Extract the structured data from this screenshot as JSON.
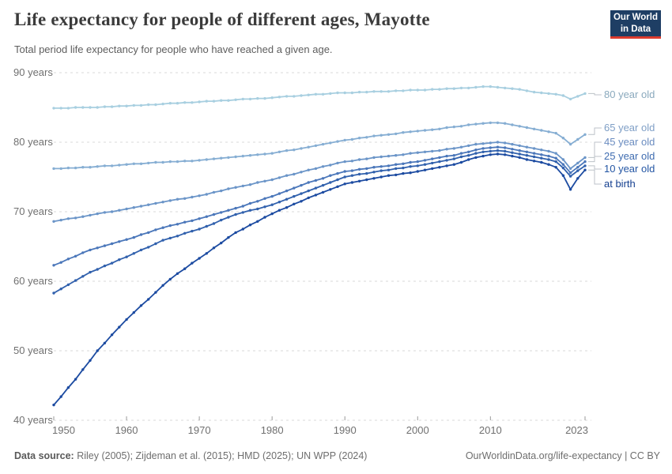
{
  "header": {
    "title": "Life expectancy for people of different ages, Mayotte",
    "subtitle": "Total period life expectancy for people who have reached a given age.",
    "logo_line1": "Our World",
    "logo_line2": "in Data",
    "logo_bg_color": "#1e3e64",
    "logo_accent_color": "#dc3b2e"
  },
  "footer": {
    "data_source_label": "Data source:",
    "data_source_value": " Riley (2005); Zijdeman et al. (2015); HMD (2025); UN WPP (2024)",
    "link_text": "OurWorldinData.org/life-expectancy | CC BY"
  },
  "chart_data": {
    "type": "line",
    "title": "Life expectancy for people of different ages, Mayotte",
    "xlabel": "",
    "ylabel": "",
    "x_range": [
      1950,
      2023
    ],
    "y_range": [
      40,
      90
    ],
    "grid": "dashed-horizontal",
    "legend_position": "right-end-labels",
    "y_ticks": [
      {
        "value": 90,
        "label": "90 years"
      },
      {
        "value": 80,
        "label": "80 years"
      },
      {
        "value": 70,
        "label": "70 years"
      },
      {
        "value": 60,
        "label": "60 years"
      },
      {
        "value": 50,
        "label": "50 years"
      },
      {
        "value": 40,
        "label": "40 years"
      }
    ],
    "x_ticks": [
      1950,
      1960,
      1970,
      1980,
      1990,
      2000,
      2010,
      2023
    ],
    "years": [
      1950,
      1951,
      1952,
      1953,
      1954,
      1955,
      1956,
      1957,
      1958,
      1959,
      1960,
      1961,
      1962,
      1963,
      1964,
      1965,
      1966,
      1967,
      1968,
      1969,
      1970,
      1971,
      1972,
      1973,
      1974,
      1975,
      1976,
      1977,
      1978,
      1979,
      1980,
      1981,
      1982,
      1983,
      1984,
      1985,
      1986,
      1987,
      1988,
      1989,
      1990,
      1991,
      1992,
      1993,
      1994,
      1995,
      1996,
      1997,
      1998,
      1999,
      2000,
      2001,
      2002,
      2003,
      2004,
      2005,
      2006,
      2007,
      2008,
      2009,
      2010,
      2011,
      2012,
      2013,
      2014,
      2015,
      2016,
      2017,
      2018,
      2019,
      2020,
      2021,
      2022,
      2023
    ],
    "series": [
      {
        "name": "80 year old",
        "color": "#a8cfe0",
        "label_color": "#8aa9bd",
        "values": [
          84.9,
          84.9,
          84.9,
          85.0,
          85.0,
          85.0,
          85.0,
          85.1,
          85.1,
          85.2,
          85.2,
          85.3,
          85.3,
          85.4,
          85.4,
          85.5,
          85.6,
          85.6,
          85.7,
          85.7,
          85.8,
          85.9,
          85.9,
          86.0,
          86.0,
          86.1,
          86.2,
          86.2,
          86.3,
          86.3,
          86.4,
          86.5,
          86.6,
          86.6,
          86.7,
          86.8,
          86.9,
          86.9,
          87.0,
          87.1,
          87.1,
          87.1,
          87.2,
          87.2,
          87.3,
          87.3,
          87.3,
          87.4,
          87.4,
          87.5,
          87.5,
          87.5,
          87.6,
          87.6,
          87.7,
          87.7,
          87.8,
          87.8,
          87.9,
          88.0,
          88.0,
          87.9,
          87.8,
          87.7,
          87.6,
          87.4,
          87.2,
          87.1,
          87.0,
          86.9,
          86.7,
          86.2,
          86.6,
          87.0
        ]
      },
      {
        "name": "65 year old",
        "color": "#86aed3",
        "label_color": "#7f9fc6",
        "values": [
          76.2,
          76.2,
          76.3,
          76.3,
          76.4,
          76.4,
          76.5,
          76.6,
          76.6,
          76.7,
          76.8,
          76.9,
          76.9,
          77.0,
          77.1,
          77.1,
          77.2,
          77.2,
          77.3,
          77.3,
          77.4,
          77.5,
          77.6,
          77.7,
          77.8,
          77.9,
          78.0,
          78.1,
          78.2,
          78.3,
          78.4,
          78.6,
          78.8,
          78.9,
          79.1,
          79.3,
          79.5,
          79.7,
          79.9,
          80.1,
          80.3,
          80.4,
          80.6,
          80.7,
          80.9,
          81.0,
          81.1,
          81.2,
          81.4,
          81.5,
          81.6,
          81.7,
          81.8,
          81.9,
          82.1,
          82.2,
          82.3,
          82.5,
          82.6,
          82.7,
          82.8,
          82.8,
          82.7,
          82.5,
          82.3,
          82.1,
          81.9,
          81.7,
          81.5,
          81.3,
          80.6,
          79.7,
          80.4,
          81.1
        ]
      },
      {
        "name": "45 year old",
        "color": "#6b95c8",
        "label_color": "#6a8cc0",
        "values": [
          68.6,
          68.8,
          69.0,
          69.1,
          69.3,
          69.5,
          69.7,
          69.9,
          70.0,
          70.2,
          70.4,
          70.6,
          70.8,
          71.0,
          71.2,
          71.4,
          71.6,
          71.8,
          71.9,
          72.1,
          72.3,
          72.5,
          72.8,
          73.0,
          73.3,
          73.5,
          73.7,
          73.9,
          74.2,
          74.4,
          74.6,
          74.9,
          75.2,
          75.4,
          75.7,
          76.0,
          76.2,
          76.5,
          76.7,
          77.0,
          77.2,
          77.3,
          77.5,
          77.6,
          77.8,
          77.9,
          78.0,
          78.1,
          78.2,
          78.4,
          78.5,
          78.6,
          78.7,
          78.8,
          79.0,
          79.1,
          79.3,
          79.5,
          79.7,
          79.8,
          79.9,
          80.0,
          79.9,
          79.7,
          79.5,
          79.3,
          79.1,
          78.9,
          78.7,
          78.4,
          77.5,
          76.2,
          77.0,
          77.8
        ]
      },
      {
        "name": "25 year old",
        "color": "#4b77ba",
        "label_color": "#3f6cb0",
        "values": [
          62.3,
          62.7,
          63.2,
          63.6,
          64.1,
          64.5,
          64.8,
          65.1,
          65.4,
          65.7,
          66.0,
          66.3,
          66.7,
          67.0,
          67.4,
          67.7,
          68.0,
          68.2,
          68.5,
          68.7,
          69.0,
          69.3,
          69.6,
          69.9,
          70.2,
          70.5,
          70.8,
          71.2,
          71.5,
          71.9,
          72.2,
          72.6,
          73.0,
          73.4,
          73.8,
          74.2,
          74.5,
          74.8,
          75.2,
          75.5,
          75.8,
          75.9,
          76.1,
          76.2,
          76.4,
          76.5,
          76.6,
          76.8,
          76.9,
          77.1,
          77.2,
          77.4,
          77.6,
          77.8,
          78.0,
          78.1,
          78.4,
          78.6,
          78.9,
          79.1,
          79.2,
          79.3,
          79.2,
          79.0,
          78.8,
          78.6,
          78.4,
          78.2,
          78.0,
          77.7,
          76.8,
          75.6,
          76.4,
          77.2
        ]
      },
      {
        "name": "10 year old",
        "color": "#3161ad",
        "label_color": "#2456a4",
        "values": [
          58.3,
          58.9,
          59.5,
          60.1,
          60.7,
          61.3,
          61.7,
          62.2,
          62.6,
          63.1,
          63.5,
          64.0,
          64.5,
          64.9,
          65.4,
          65.9,
          66.2,
          66.5,
          66.9,
          67.2,
          67.5,
          67.9,
          68.3,
          68.8,
          69.2,
          69.6,
          69.9,
          70.2,
          70.4,
          70.7,
          71.0,
          71.4,
          71.8,
          72.2,
          72.6,
          73.0,
          73.4,
          73.8,
          74.2,
          74.6,
          75.0,
          75.2,
          75.4,
          75.5,
          75.7,
          75.9,
          76.0,
          76.2,
          76.3,
          76.5,
          76.6,
          76.8,
          77.0,
          77.2,
          77.4,
          77.6,
          77.9,
          78.1,
          78.4,
          78.6,
          78.7,
          78.8,
          78.7,
          78.5,
          78.3,
          78.1,
          77.9,
          77.7,
          77.5,
          77.2,
          76.3,
          75.1,
          75.9,
          76.6
        ]
      },
      {
        "name": "at birth",
        "color": "#1c4ba1",
        "label_color": "#143f8f",
        "values": [
          42.2,
          43.4,
          44.7,
          45.9,
          47.3,
          48.6,
          50.0,
          51.1,
          52.3,
          53.4,
          54.5,
          55.5,
          56.5,
          57.4,
          58.4,
          59.4,
          60.3,
          61.1,
          61.8,
          62.6,
          63.3,
          64.0,
          64.8,
          65.5,
          66.3,
          67.0,
          67.5,
          68.1,
          68.6,
          69.2,
          69.7,
          70.2,
          70.6,
          71.1,
          71.5,
          72.0,
          72.4,
          72.8,
          73.2,
          73.6,
          74.0,
          74.2,
          74.4,
          74.6,
          74.8,
          75.0,
          75.2,
          75.3,
          75.5,
          75.6,
          75.8,
          76.0,
          76.2,
          76.4,
          76.6,
          76.8,
          77.1,
          77.5,
          77.8,
          78.0,
          78.2,
          78.3,
          78.2,
          78.0,
          77.8,
          77.5,
          77.3,
          77.1,
          76.8,
          76.4,
          75.2,
          73.2,
          74.8,
          76.0
        ]
      }
    ]
  }
}
